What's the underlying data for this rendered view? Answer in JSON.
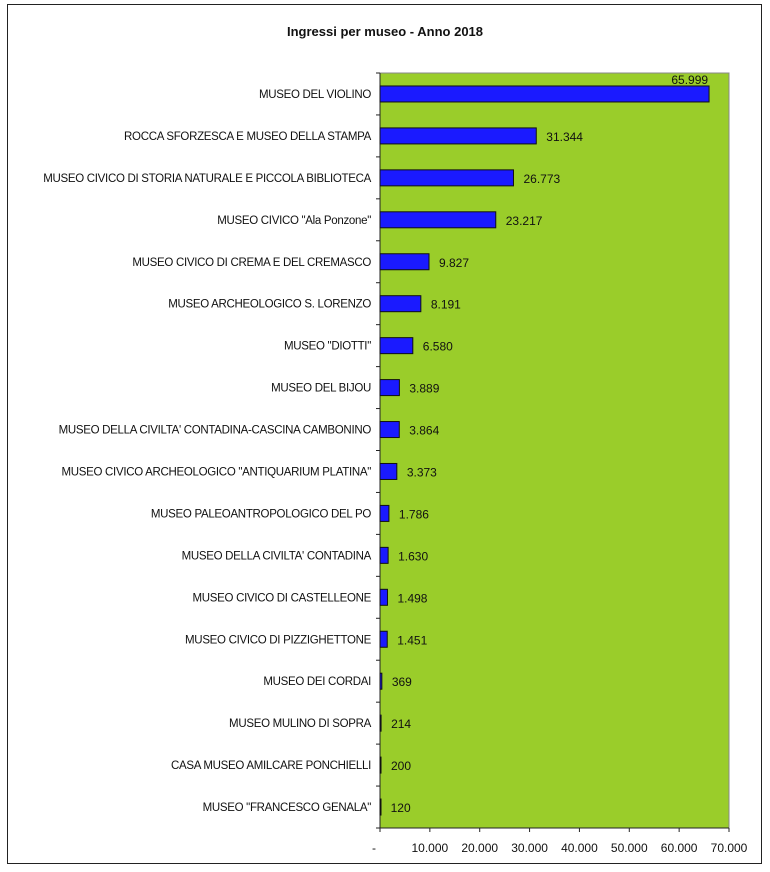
{
  "chart_data": {
    "type": "bar",
    "orientation": "horizontal",
    "title": "Ingressi per museo - Anno 2018",
    "xlabel": "",
    "ylabel": "",
    "xlim": [
      0,
      70000
    ],
    "x_tick_labels": [
      "-",
      "10.000",
      "20.000",
      "30.000",
      "40.000",
      "50.000",
      "60.000",
      "70.000"
    ],
    "x_ticks": [
      0,
      10000,
      20000,
      30000,
      40000,
      50000,
      60000,
      70000
    ],
    "grid": false,
    "legend": "none",
    "colors": {
      "bar": "#1a1aff",
      "plot_bg": "#9acd2a"
    },
    "categories": [
      "MUSEO DEL VIOLINO",
      "ROCCA SFORZESCA E MUSEO DELLA STAMPA",
      "MUSEO CIVICO DI STORIA NATURALE E PICCOLA BIBLIOTECA",
      "MUSEO CIVICO \"Ala Ponzone\"",
      "MUSEO CIVICO DI CREMA E DEL CREMASCO",
      "MUSEO ARCHEOLOGICO S. LORENZO",
      "MUSEO \"DIOTTI\"",
      "MUSEO DEL BIJOU",
      "MUSEO DELLA CIVILTA' CONTADINA-CASCINA CAMBONINO",
      "MUSEO CIVICO ARCHEOLOGICO \"ANTIQUARIUM PLATINA\"",
      "MUSEO PALEOANTROPOLOGICO DEL PO",
      "MUSEO DELLA CIVILTA' CONTADINA",
      "MUSEO CIVICO DI CASTELLEONE",
      "MUSEO CIVICO DI PIZZIGHETTONE",
      "MUSEO DEI CORDAI",
      "MUSEO MULINO DI SOPRA",
      "CASA MUSEO AMILCARE PONCHIELLI",
      "MUSEO \"FRANCESCO GENALA\""
    ],
    "values": [
      65999,
      31344,
      26773,
      23217,
      9827,
      8191,
      6580,
      3889,
      3864,
      3373,
      1786,
      1630,
      1498,
      1451,
      369,
      214,
      200,
      120
    ],
    "value_labels": [
      "65.999",
      "31.344",
      "26.773",
      "23.217",
      "9.827",
      "8.191",
      "6.580",
      "3.889",
      "3.864",
      "3.373",
      "1.786",
      "1.630",
      "1.498",
      "1.451",
      "369",
      "214",
      "200",
      "120"
    ]
  }
}
